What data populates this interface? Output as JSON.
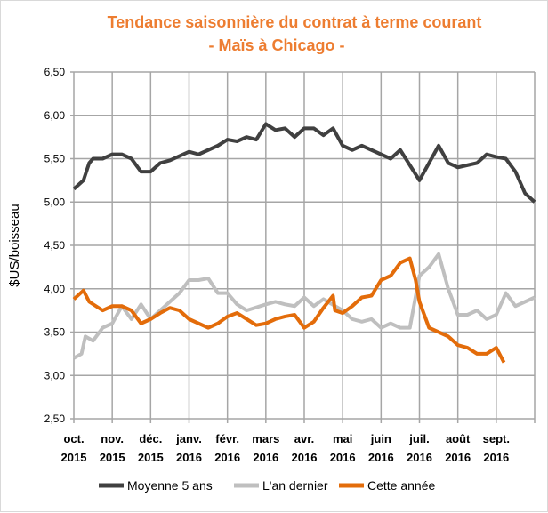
{
  "chart_data": {
    "type": "line",
    "title": [
      "Tendance saisonnière du contrat à terme courant",
      "- Maïs à Chicago -"
    ],
    "ylabel": "$US/boisseau",
    "ylim": [
      2.5,
      6.5
    ],
    "yticks": [
      "2,50",
      "3,00",
      "3,50",
      "4,00",
      "4,50",
      "5,00",
      "5,50",
      "6,00",
      "6,50"
    ],
    "xticks": [
      [
        "oct.",
        "2015"
      ],
      [
        "nov.",
        "2015"
      ],
      [
        "déc.",
        "2015"
      ],
      [
        "janv.",
        "2016"
      ],
      [
        "févr.",
        "2016"
      ],
      [
        "mars",
        "2016"
      ],
      [
        "avr.",
        "2016"
      ],
      [
        "mai",
        "2016"
      ],
      [
        "juin",
        "2016"
      ],
      [
        "juil.",
        "2016"
      ],
      [
        "août",
        "2016"
      ],
      [
        "sept.",
        "2016"
      ]
    ],
    "x_unit": "months since oct. 2015",
    "series": [
      {
        "name": "Moyenne 5 ans",
        "color": "#404040",
        "points": [
          [
            0,
            5.15
          ],
          [
            0.25,
            5.25
          ],
          [
            0.4,
            5.45
          ],
          [
            0.5,
            5.5
          ],
          [
            0.75,
            5.5
          ],
          [
            1,
            5.55
          ],
          [
            1.25,
            5.55
          ],
          [
            1.5,
            5.5
          ],
          [
            1.75,
            5.35
          ],
          [
            2,
            5.35
          ],
          [
            2.25,
            5.45
          ],
          [
            2.5,
            5.48
          ],
          [
            3,
            5.58
          ],
          [
            3.25,
            5.55
          ],
          [
            3.5,
            5.6
          ],
          [
            3.75,
            5.65
          ],
          [
            4,
            5.72
          ],
          [
            4.25,
            5.7
          ],
          [
            4.5,
            5.75
          ],
          [
            4.75,
            5.72
          ],
          [
            5,
            5.9
          ],
          [
            5.25,
            5.83
          ],
          [
            5.5,
            5.85
          ],
          [
            5.75,
            5.75
          ],
          [
            6,
            5.85
          ],
          [
            6.25,
            5.85
          ],
          [
            6.5,
            5.77
          ],
          [
            6.75,
            5.85
          ],
          [
            7,
            5.65
          ],
          [
            7.25,
            5.6
          ],
          [
            7.5,
            5.65
          ],
          [
            7.75,
            5.6
          ],
          [
            8,
            5.55
          ],
          [
            8.25,
            5.5
          ],
          [
            8.5,
            5.6
          ],
          [
            9,
            5.25
          ],
          [
            9.25,
            5.45
          ],
          [
            9.5,
            5.65
          ],
          [
            9.75,
            5.45
          ],
          [
            10,
            5.4
          ],
          [
            10.5,
            5.45
          ],
          [
            10.75,
            5.55
          ],
          [
            11,
            5.52
          ],
          [
            11.25,
            5.5
          ],
          [
            11.5,
            5.35
          ],
          [
            11.75,
            5.1
          ],
          [
            12,
            5.0
          ]
        ]
      },
      {
        "name": "L'an dernier",
        "color": "#bfbfbf",
        "points": [
          [
            0,
            3.2
          ],
          [
            0.2,
            3.25
          ],
          [
            0.3,
            3.45
          ],
          [
            0.5,
            3.4
          ],
          [
            0.75,
            3.55
          ],
          [
            1,
            3.6
          ],
          [
            1.25,
            3.8
          ],
          [
            1.5,
            3.65
          ],
          [
            1.75,
            3.82
          ],
          [
            2,
            3.65
          ],
          [
            2.25,
            3.75
          ],
          [
            2.5,
            3.85
          ],
          [
            2.75,
            3.95
          ],
          [
            3,
            4.1
          ],
          [
            3.25,
            4.1
          ],
          [
            3.5,
            4.12
          ],
          [
            3.75,
            3.95
          ],
          [
            4,
            3.95
          ],
          [
            4.25,
            3.82
          ],
          [
            4.5,
            3.75
          ],
          [
            5,
            3.82
          ],
          [
            5.25,
            3.85
          ],
          [
            5.5,
            3.82
          ],
          [
            5.75,
            3.8
          ],
          [
            6,
            3.9
          ],
          [
            6.25,
            3.8
          ],
          [
            6.5,
            3.88
          ],
          [
            7,
            3.75
          ],
          [
            7.25,
            3.65
          ],
          [
            7.5,
            3.62
          ],
          [
            7.75,
            3.65
          ],
          [
            8,
            3.55
          ],
          [
            8.25,
            3.6
          ],
          [
            8.5,
            3.55
          ],
          [
            8.75,
            3.55
          ],
          [
            9,
            4.15
          ],
          [
            9.25,
            4.25
          ],
          [
            9.5,
            4.4
          ],
          [
            9.75,
            4.0
          ],
          [
            10,
            3.7
          ],
          [
            10.25,
            3.7
          ],
          [
            10.5,
            3.75
          ],
          [
            10.75,
            3.65
          ],
          [
            11,
            3.7
          ],
          [
            11.25,
            3.95
          ],
          [
            11.5,
            3.8
          ],
          [
            12,
            3.9
          ]
        ]
      },
      {
        "name": "Cette année",
        "color": "#e36c0a",
        "points": [
          [
            0,
            3.88
          ],
          [
            0.25,
            3.98
          ],
          [
            0.4,
            3.85
          ],
          [
            0.75,
            3.75
          ],
          [
            1,
            3.8
          ],
          [
            1.25,
            3.8
          ],
          [
            1.5,
            3.75
          ],
          [
            1.75,
            3.6
          ],
          [
            2,
            3.65
          ],
          [
            2.25,
            3.72
          ],
          [
            2.5,
            3.78
          ],
          [
            2.75,
            3.75
          ],
          [
            3,
            3.65
          ],
          [
            3.25,
            3.6
          ],
          [
            3.5,
            3.55
          ],
          [
            3.75,
            3.6
          ],
          [
            4,
            3.68
          ],
          [
            4.25,
            3.72
          ],
          [
            4.5,
            3.65
          ],
          [
            4.75,
            3.58
          ],
          [
            5,
            3.6
          ],
          [
            5.25,
            3.65
          ],
          [
            5.5,
            3.68
          ],
          [
            5.75,
            3.7
          ],
          [
            6,
            3.55
          ],
          [
            6.25,
            3.62
          ],
          [
            6.5,
            3.78
          ],
          [
            6.75,
            3.92
          ],
          [
            6.8,
            3.75
          ],
          [
            7,
            3.72
          ],
          [
            7.25,
            3.8
          ],
          [
            7.5,
            3.9
          ],
          [
            7.75,
            3.92
          ],
          [
            8,
            4.1
          ],
          [
            8.25,
            4.15
          ],
          [
            8.5,
            4.3
          ],
          [
            8.75,
            4.35
          ],
          [
            8.9,
            4.1
          ],
          [
            9,
            3.85
          ],
          [
            9.25,
            3.55
          ],
          [
            9.5,
            3.5
          ],
          [
            9.75,
            3.45
          ],
          [
            10,
            3.35
          ],
          [
            10.25,
            3.32
          ],
          [
            10.5,
            3.25
          ],
          [
            10.75,
            3.25
          ],
          [
            11,
            3.32
          ],
          [
            11.2,
            3.15
          ]
        ]
      }
    ],
    "legend": "bottom",
    "grid": true
  }
}
